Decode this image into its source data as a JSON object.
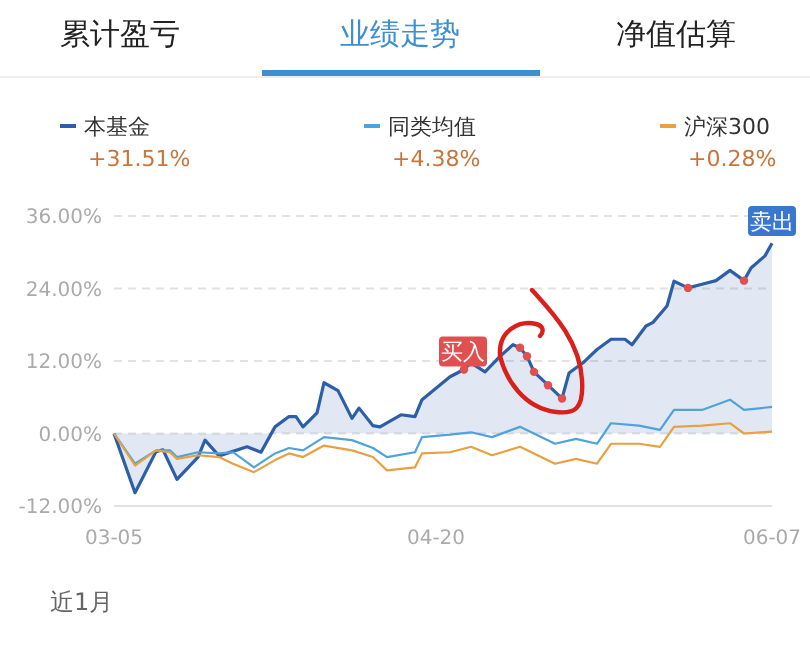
{
  "chart_data": {
    "type": "line",
    "ylim": [
      -12,
      36
    ],
    "yticks": [
      {
        "value": -12,
        "label": "-12.00%"
      },
      {
        "value": 0,
        "label": "0.00%"
      },
      {
        "value": 12,
        "label": "12.00%"
      },
      {
        "value": 24,
        "label": "24.00%"
      },
      {
        "value": 36,
        "label": "36.00%"
      }
    ],
    "xlim": [
      "--03-05",
      "--06-07"
    ],
    "xticks": [
      {
        "value": "--03-05",
        "label": "03-05"
      },
      {
        "value": "--04-20",
        "label": "04-20"
      },
      {
        "value": "--06-07",
        "label": "06-07"
      }
    ],
    "grid": "y",
    "legend": "top",
    "marker": "none",
    "line_style": "solid",
    "series": [
      {
        "name": "本基金",
        "type": "area",
        "color": "#2d5fa8",
        "x": [
          "--03-05",
          "--03-08",
          "--03-11",
          "--03-12",
          "--03-14",
          "--03-17",
          "--03-18",
          "--03-20",
          "--03-24",
          "--03-26",
          "--03-28",
          "--03-30",
          "--03-31",
          "--04-01",
          "--04-03",
          "--04-04",
          "--04-06",
          "--04-08",
          "--04-09",
          "--04-11",
          "--04-12",
          "--04-15",
          "--04-17",
          "--04-18",
          "--04-22",
          "--04-24",
          "--04-25",
          "--04-27",
          "--04-29",
          "--05-01",
          "--05-02",
          "--05-03",
          "--05-04",
          "--05-06",
          "--05-08",
          "--05-09",
          "--05-11",
          "--05-13",
          "--05-15",
          "--05-17",
          "--05-18",
          "--05-20",
          "--05-21",
          "--05-23",
          "--05-24",
          "--05-26",
          "--05-28",
          "--05-30",
          "--06-01",
          "--06-03",
          "--06-04",
          "--06-06",
          "--06-07"
        ],
        "values": [
          0,
          -9.8,
          -3,
          -2.7,
          -7.6,
          -3.9,
          -1.1,
          -3.7,
          -2.2,
          -3.1,
          1.1,
          2.8,
          2.8,
          1.1,
          3.4,
          8.4,
          7.1,
          2.5,
          4.2,
          1.3,
          1.1,
          3.1,
          2.8,
          5.6,
          9.4,
          10.6,
          11.7,
          10.2,
          12.6,
          14.7,
          14.2,
          12.8,
          10.2,
          8,
          5.8,
          10,
          11.7,
          13.9,
          15.6,
          15.6,
          14.7,
          17.8,
          18.4,
          21.1,
          25.2,
          24.1,
          24.7,
          25.3,
          27,
          25.3,
          27.4,
          29.4,
          31.5
        ]
      },
      {
        "name": "同类均值",
        "color": "#4fa3d8",
        "x": [
          "--03-05",
          "--03-08",
          "--03-11",
          "--03-13",
          "--03-14",
          "--03-17",
          "--03-20",
          "--03-22",
          "--03-25",
          "--03-28",
          "--03-30",
          "--04-01",
          "--04-04",
          "--04-08",
          "--04-11",
          "--04-13",
          "--04-17",
          "--04-18",
          "--04-22",
          "--04-25",
          "--04-28",
          "--05-02",
          "--05-07",
          "--05-10",
          "--05-13",
          "--05-15",
          "--05-19",
          "--05-22",
          "--05-24",
          "--05-28",
          "--06-01",
          "--06-03",
          "--06-07"
        ],
        "values": [
          0,
          -5,
          -2.8,
          -2.8,
          -3.9,
          -3.1,
          -3.3,
          -3.1,
          -5.6,
          -3.3,
          -2.4,
          -2.8,
          -0.6,
          -1.1,
          -2.4,
          -3.9,
          -3.1,
          -0.6,
          -0.2,
          0.2,
          -0.6,
          1.1,
          -1.7,
          -0.9,
          -1.7,
          1.7,
          1.3,
          0.6,
          3.9,
          3.9,
          5.6,
          3.9,
          4.4
        ]
      },
      {
        "name": "沪深300",
        "color": "#e8a040",
        "x": [
          "--03-05",
          "--03-08",
          "--03-11",
          "--03-13",
          "--03-14",
          "--03-17",
          "--03-20",
          "--03-22",
          "--03-25",
          "--03-28",
          "--03-30",
          "--04-01",
          "--04-04",
          "--04-08",
          "--04-11",
          "--04-13",
          "--04-17",
          "--04-18",
          "--04-22",
          "--04-25",
          "--04-28",
          "--05-02",
          "--05-07",
          "--05-10",
          "--05-13",
          "--05-15",
          "--05-19",
          "--05-22",
          "--05-24",
          "--05-28",
          "--06-01",
          "--06-03",
          "--06-07"
        ],
        "values": [
          0,
          -5.3,
          -2.8,
          -3.1,
          -4.2,
          -3.6,
          -3.9,
          -5,
          -6.4,
          -4.4,
          -3.3,
          -3.9,
          -2,
          -2.8,
          -3.9,
          -6.1,
          -5.6,
          -3.3,
          -3.1,
          -2.2,
          -3.6,
          -2.2,
          -5,
          -4.2,
          -5,
          -1.7,
          -1.7,
          -2.2,
          1.1,
          1.3,
          1.7,
          0,
          0.3
        ]
      },
      {
        "type": "scatter",
        "color": "#e05050",
        "marker": "circle",
        "x": [
          "--04-24",
          "--05-02",
          "--05-03",
          "--05-04",
          "--05-06",
          "--05-08",
          "--05-26",
          "--06-03"
        ],
        "values": [
          10.6,
          14.2,
          12.8,
          10.2,
          8,
          5.8,
          24.1,
          25.3
        ]
      }
    ],
    "annotations": [
      "累计盈亏",
      "业绩走势",
      "净值估算",
      "+31.51%",
      "+4.38%",
      "+0.28%",
      "近1月",
      {
        "text": "买入",
        "x": "--04-29",
        "y": 12.6
      },
      {
        "text": "卖出",
        "x": "--06-07",
        "y": 31.7
      }
    ]
  }
}
